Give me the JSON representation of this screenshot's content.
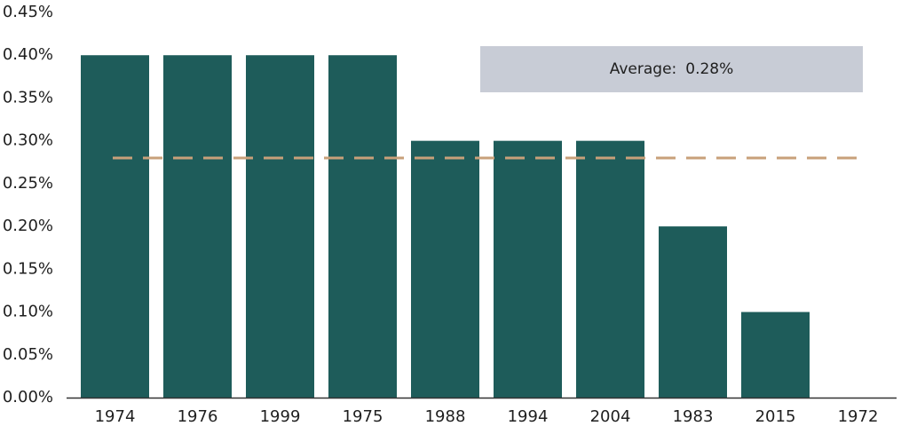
{
  "chart_data": {
    "type": "bar",
    "title": "",
    "xlabel": "",
    "ylabel": "",
    "categories": [
      "1974",
      "1976",
      "1999",
      "1975",
      "1988",
      "1994",
      "2004",
      "1983",
      "2015",
      "1972"
    ],
    "values": [
      0.4,
      0.4,
      0.4,
      0.4,
      0.3,
      0.3,
      0.3,
      0.2,
      0.1,
      0.0
    ],
    "ylim": [
      0,
      0.45
    ],
    "yticks": [
      0.0,
      0.05,
      0.1,
      0.15,
      0.2,
      0.25,
      0.3,
      0.35,
      0.4,
      0.45
    ],
    "ytick_labels": [
      "0.00%",
      "0.05%",
      "0.10%",
      "0.15%",
      "0.20%",
      "0.25%",
      "0.30%",
      "0.35%",
      "0.40%",
      "0.45%"
    ],
    "grid": false,
    "average": {
      "value": 0.28,
      "label": "Average:",
      "value_label": "0.28%"
    },
    "colors": {
      "bar": "#1e5c5a",
      "average_line": "#c8a07a",
      "average_box": "#c8ccd6",
      "axis": "#333333"
    }
  }
}
